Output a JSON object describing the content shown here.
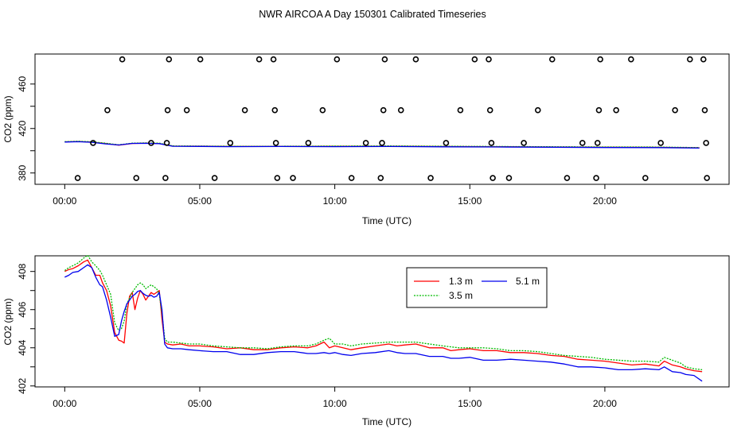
{
  "page": {
    "title": "NWR AIRCOA A  Day 150301  Calibrated Timeseries"
  },
  "chart_data": [
    {
      "type": "scatter",
      "title": "",
      "xlabel": "Time (UTC)",
      "ylabel": "CO2 (ppm)",
      "xlim": [
        -1.1,
        24.6
      ],
      "ylim": [
        369.8,
        487.0
      ],
      "x_tick_values": [
        0,
        5,
        10,
        15,
        20
      ],
      "x_tick_labels": [
        "00:00",
        "05:00",
        "10:00",
        "15:00",
        "20:00"
      ],
      "y_tick_values": [
        380,
        420,
        460
      ],
      "y_tick_labels": [
        "380",
        "420",
        "460"
      ],
      "y_tick_values_minor": [
        400,
        440
      ],
      "grid": false,
      "calibration_points": {
        "name": "calibration standards",
        "points": [
          {
            "x": 0.48,
            "y": 375.5
          },
          {
            "x": 1.05,
            "y": 407.0
          },
          {
            "x": 1.58,
            "y": 436.5
          },
          {
            "x": 2.13,
            "y": 482.2
          },
          {
            "x": 2.65,
            "y": 375.5
          },
          {
            "x": 3.2,
            "y": 407.0
          },
          {
            "x": 3.73,
            "y": 375.5
          },
          {
            "x": 3.78,
            "y": 407.0
          },
          {
            "x": 3.81,
            "y": 436.5
          },
          {
            "x": 3.86,
            "y": 482.2
          },
          {
            "x": 4.52,
            "y": 436.5
          },
          {
            "x": 5.02,
            "y": 482.2
          },
          {
            "x": 5.55,
            "y": 375.5
          },
          {
            "x": 6.13,
            "y": 407.0
          },
          {
            "x": 6.67,
            "y": 436.5
          },
          {
            "x": 7.2,
            "y": 482.2
          },
          {
            "x": 7.73,
            "y": 482.2
          },
          {
            "x": 7.78,
            "y": 436.5
          },
          {
            "x": 7.82,
            "y": 407.0
          },
          {
            "x": 7.87,
            "y": 375.5
          },
          {
            "x": 8.45,
            "y": 375.5
          },
          {
            "x": 9.02,
            "y": 407.0
          },
          {
            "x": 9.55,
            "y": 436.5
          },
          {
            "x": 10.08,
            "y": 482.2
          },
          {
            "x": 10.62,
            "y": 375.5
          },
          {
            "x": 11.15,
            "y": 407.0
          },
          {
            "x": 11.7,
            "y": 375.5
          },
          {
            "x": 11.75,
            "y": 407.0
          },
          {
            "x": 11.8,
            "y": 436.5
          },
          {
            "x": 11.85,
            "y": 482.2
          },
          {
            "x": 12.45,
            "y": 436.5
          },
          {
            "x": 13.0,
            "y": 482.2
          },
          {
            "x": 13.55,
            "y": 375.5
          },
          {
            "x": 14.12,
            "y": 407.0
          },
          {
            "x": 14.65,
            "y": 436.5
          },
          {
            "x": 15.18,
            "y": 482.2
          },
          {
            "x": 15.7,
            "y": 482.2
          },
          {
            "x": 15.75,
            "y": 436.5
          },
          {
            "x": 15.8,
            "y": 407.0
          },
          {
            "x": 15.85,
            "y": 375.5
          },
          {
            "x": 16.45,
            "y": 375.5
          },
          {
            "x": 17.0,
            "y": 407.0
          },
          {
            "x": 17.52,
            "y": 436.5
          },
          {
            "x": 18.05,
            "y": 482.2
          },
          {
            "x": 18.6,
            "y": 375.5
          },
          {
            "x": 19.17,
            "y": 407.0
          },
          {
            "x": 19.68,
            "y": 375.5
          },
          {
            "x": 19.73,
            "y": 407.0
          },
          {
            "x": 19.78,
            "y": 436.5
          },
          {
            "x": 19.83,
            "y": 482.2
          },
          {
            "x": 20.42,
            "y": 436.5
          },
          {
            "x": 20.97,
            "y": 482.2
          },
          {
            "x": 21.5,
            "y": 375.5
          },
          {
            "x": 22.07,
            "y": 407.0
          },
          {
            "x": 22.6,
            "y": 436.5
          },
          {
            "x": 23.15,
            "y": 482.2
          },
          {
            "x": 23.65,
            "y": 482.2
          },
          {
            "x": 23.7,
            "y": 436.5
          },
          {
            "x": 23.75,
            "y": 407.0
          },
          {
            "x": 23.78,
            "y": 375.5
          }
        ]
      },
      "series": [
        {
          "name": "1.3 m",
          "color": "#ff0000",
          "x": [
            0,
            0.5,
            1,
            1.5,
            2,
            2.5,
            3,
            3.5,
            4,
            5,
            6,
            8,
            10,
            12,
            14,
            16,
            18,
            20,
            22,
            23.5
          ],
          "values": [
            408.0,
            408.3,
            407.8,
            406.5,
            405.0,
            406.5,
            406.8,
            406.5,
            404.2,
            404.1,
            403.9,
            403.9,
            404.0,
            404.0,
            403.8,
            403.7,
            403.4,
            403.2,
            403.1,
            402.7
          ]
        },
        {
          "name": "3.5 m",
          "color": "#00bb00",
          "x": [
            0,
            0.5,
            1,
            1.5,
            2,
            2.5,
            3,
            3.5,
            4,
            5,
            6,
            8,
            10,
            12,
            14,
            16,
            18,
            20,
            22,
            23.5
          ],
          "values": [
            408.2,
            408.5,
            408.0,
            406.8,
            405.3,
            406.8,
            407.0,
            406.8,
            404.3,
            404.2,
            404.0,
            404.0,
            404.2,
            404.3,
            404.0,
            403.8,
            403.6,
            403.4,
            403.3,
            402.8
          ]
        },
        {
          "name": "5.1 m",
          "color": "#0000ee",
          "x": [
            0,
            0.5,
            1,
            1.5,
            2,
            2.5,
            3,
            3.5,
            4,
            5,
            6,
            8,
            10,
            12,
            14,
            16,
            18,
            20,
            22,
            23.5
          ],
          "values": [
            407.8,
            408.1,
            407.6,
            406.2,
            405.2,
            406.6,
            406.7,
            406.4,
            404.0,
            403.9,
            403.7,
            403.8,
            403.7,
            403.8,
            403.5,
            403.4,
            403.2,
            402.9,
            402.8,
            402.4
          ]
        }
      ]
    },
    {
      "type": "line",
      "title": "",
      "xlabel": "Time (UTC)",
      "ylabel": "CO2 (ppm)",
      "xlim": [
        -1.1,
        24.6
      ],
      "ylim": [
        401.95,
        408.82
      ],
      "x_tick_values": [
        0,
        5,
        10,
        15,
        20
      ],
      "x_tick_labels": [
        "00:00",
        "05:00",
        "10:00",
        "15:00",
        "20:00"
      ],
      "y_tick_values": [
        402,
        404,
        406,
        408
      ],
      "y_tick_labels": [
        "402",
        "404",
        "406",
        "408"
      ],
      "y_tick_values_minor": [
        403,
        405,
        407
      ],
      "grid": false,
      "legend_position": "top-center",
      "legend_entries": [
        "1.3 m",
        "5.1 m",
        "3.5 m"
      ],
      "series": [
        {
          "name": "1.3 m",
          "color": "#ff0000",
          "x": [
            0,
            0.15,
            0.3,
            0.5,
            0.7,
            0.85,
            1.0,
            1.15,
            1.3,
            1.4,
            1.55,
            1.7,
            1.85,
            2.0,
            2.1,
            2.2,
            2.3,
            2.4,
            2.5,
            2.6,
            2.7,
            2.8,
            2.9,
            3.0,
            3.1,
            3.2,
            3.3,
            3.4,
            3.5,
            3.6,
            3.7,
            3.8,
            4.0,
            4.3,
            4.6,
            5.0,
            5.5,
            6.0,
            6.5,
            7.0,
            7.5,
            8.0,
            8.5,
            9.0,
            9.3,
            9.6,
            9.8,
            10.0,
            10.3,
            10.6,
            11.0,
            11.5,
            12.0,
            12.3,
            12.6,
            13.0,
            13.5,
            14.0,
            14.3,
            14.6,
            15.0,
            15.5,
            16.0,
            16.5,
            17.0,
            17.5,
            18.0,
            18.5,
            19.0,
            19.5,
            20.0,
            20.5,
            21.0,
            21.5,
            22.0,
            22.2,
            22.5,
            22.8,
            23.0,
            23.3,
            23.6
          ],
          "values": [
            408.0,
            408.1,
            408.15,
            408.3,
            408.5,
            408.6,
            408.2,
            407.8,
            407.8,
            407.4,
            407.0,
            406.2,
            404.8,
            404.4,
            404.35,
            404.25,
            405.8,
            406.7,
            406.9,
            406.0,
            406.6,
            407.0,
            406.8,
            406.5,
            406.7,
            406.9,
            406.8,
            406.9,
            407.0,
            405.5,
            404.3,
            404.2,
            404.15,
            404.2,
            404.1,
            404.1,
            404.05,
            403.95,
            404.0,
            403.9,
            403.9,
            404.0,
            404.05,
            404.0,
            404.1,
            404.3,
            404.0,
            404.1,
            404.0,
            403.9,
            404.0,
            404.1,
            404.2,
            404.1,
            404.15,
            404.2,
            404.0,
            404.0,
            403.85,
            403.9,
            403.95,
            403.85,
            403.85,
            403.75,
            403.75,
            403.7,
            403.6,
            403.55,
            403.4,
            403.35,
            403.3,
            403.2,
            403.1,
            403.15,
            403.05,
            403.3,
            403.1,
            403.0,
            402.9,
            402.8,
            402.75
          ]
        },
        {
          "name": "3.5 m",
          "color": "#00bb00",
          "x": [
            0,
            0.15,
            0.3,
            0.5,
            0.7,
            0.85,
            1.0,
            1.15,
            1.3,
            1.4,
            1.55,
            1.7,
            1.85,
            2.0,
            2.1,
            2.2,
            2.3,
            2.4,
            2.5,
            2.6,
            2.7,
            2.8,
            2.9,
            3.0,
            3.1,
            3.2,
            3.3,
            3.4,
            3.5,
            3.6,
            3.7,
            3.8,
            4.0,
            4.3,
            4.6,
            5.0,
            5.5,
            6.0,
            6.5,
            7.0,
            7.5,
            8.0,
            8.5,
            9.0,
            9.3,
            9.6,
            9.8,
            10.0,
            10.3,
            10.6,
            11.0,
            11.5,
            12.0,
            12.3,
            12.6,
            13.0,
            13.5,
            14.0,
            14.3,
            14.6,
            15.0,
            15.5,
            16.0,
            16.5,
            17.0,
            17.5,
            18.0,
            18.5,
            19.0,
            19.5,
            20.0,
            20.5,
            21.0,
            21.5,
            22.0,
            22.2,
            22.5,
            22.8,
            23.0,
            23.3,
            23.6
          ],
          "values": [
            408.05,
            408.2,
            408.3,
            408.45,
            408.7,
            408.85,
            408.5,
            408.3,
            408.05,
            407.8,
            407.3,
            406.8,
            405.3,
            404.9,
            405.0,
            405.4,
            406.3,
            406.6,
            406.9,
            407.1,
            407.3,
            407.4,
            407.3,
            407.1,
            407.2,
            407.3,
            407.2,
            407.1,
            406.8,
            405.8,
            404.5,
            404.3,
            404.3,
            404.25,
            404.2,
            404.2,
            404.1,
            404.05,
            404.0,
            404.0,
            403.95,
            404.05,
            404.1,
            404.1,
            404.2,
            404.4,
            404.5,
            404.2,
            404.2,
            404.1,
            404.2,
            404.25,
            404.3,
            404.3,
            404.3,
            404.3,
            404.2,
            404.1,
            404.05,
            404.0,
            404.0,
            404.0,
            403.95,
            403.85,
            403.85,
            403.8,
            403.7,
            403.6,
            403.55,
            403.5,
            403.4,
            403.35,
            403.3,
            403.3,
            403.25,
            403.5,
            403.35,
            403.2,
            403.0,
            402.9,
            402.85
          ]
        },
        {
          "name": "5.1 m",
          "color": "#0000ee",
          "x": [
            0,
            0.15,
            0.3,
            0.5,
            0.7,
            0.85,
            1.0,
            1.15,
            1.3,
            1.4,
            1.55,
            1.7,
            1.85,
            2.0,
            2.1,
            2.2,
            2.3,
            2.4,
            2.5,
            2.6,
            2.7,
            2.8,
            2.9,
            3.0,
            3.1,
            3.2,
            3.3,
            3.4,
            3.5,
            3.6,
            3.7,
            3.8,
            4.0,
            4.3,
            4.6,
            5.0,
            5.5,
            6.0,
            6.5,
            7.0,
            7.5,
            8.0,
            8.5,
            9.0,
            9.3,
            9.6,
            9.8,
            10.0,
            10.3,
            10.6,
            11.0,
            11.5,
            12.0,
            12.3,
            12.6,
            13.0,
            13.5,
            14.0,
            14.3,
            14.6,
            15.0,
            15.5,
            16.0,
            16.5,
            17.0,
            17.5,
            18.0,
            18.5,
            19.0,
            19.5,
            20.0,
            20.5,
            21.0,
            21.5,
            22.0,
            22.2,
            22.5,
            22.8,
            23.0,
            23.3,
            23.6
          ],
          "values": [
            407.7,
            407.8,
            407.95,
            408.0,
            408.2,
            408.35,
            408.2,
            407.7,
            407.3,
            407.2,
            406.5,
            405.6,
            404.6,
            404.7,
            405.4,
            405.9,
            406.3,
            406.5,
            406.7,
            406.8,
            406.95,
            407.0,
            406.85,
            406.75,
            406.7,
            406.75,
            406.65,
            406.7,
            406.9,
            406.0,
            404.2,
            404.0,
            403.95,
            403.95,
            403.9,
            403.85,
            403.8,
            403.8,
            403.65,
            403.65,
            403.75,
            403.8,
            403.8,
            403.7,
            403.7,
            403.75,
            403.7,
            403.75,
            403.65,
            403.6,
            403.7,
            403.75,
            403.85,
            403.75,
            403.7,
            403.7,
            403.55,
            403.55,
            403.45,
            403.45,
            403.5,
            403.35,
            403.35,
            403.4,
            403.35,
            403.3,
            403.25,
            403.15,
            403.0,
            403.0,
            402.95,
            402.85,
            402.85,
            402.9,
            402.85,
            403.0,
            402.75,
            402.7,
            402.6,
            402.55,
            402.25
          ]
        }
      ]
    }
  ]
}
